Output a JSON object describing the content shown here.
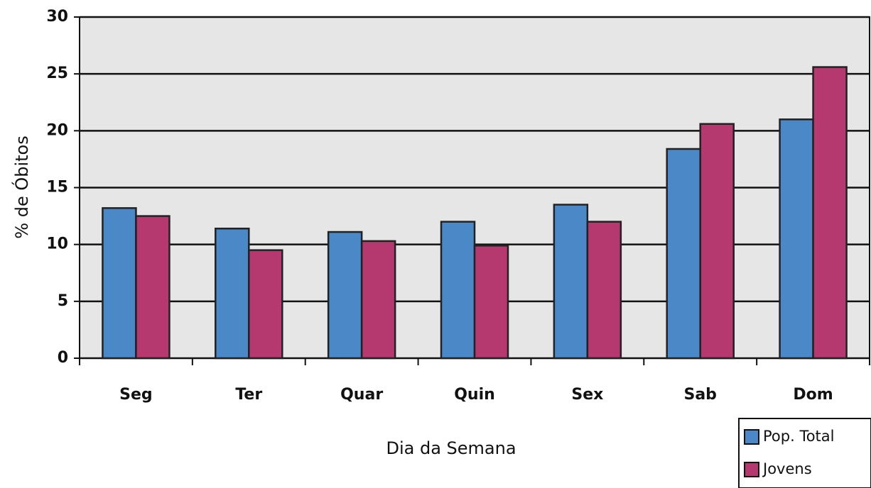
{
  "chart_data": {
    "type": "bar",
    "categories": [
      "Seg",
      "Ter",
      "Quar",
      "Quin",
      "Sex",
      "Sab",
      "Dom"
    ],
    "series": [
      {
        "name": "Pop. Total",
        "color": "#4a88c8",
        "values": [
          13.2,
          11.4,
          11.1,
          12.0,
          13.5,
          18.4,
          21.0
        ]
      },
      {
        "name": "Jovens",
        "color": "#b5386e",
        "values": [
          12.5,
          9.5,
          10.3,
          9.9,
          12.0,
          20.6,
          25.6
        ]
      }
    ],
    "xlabel": "Dia da Semana",
    "ylabel": "% de Óbitos",
    "ylim": [
      0,
      30
    ],
    "yticks": [
      0,
      5,
      10,
      15,
      20,
      25,
      30
    ],
    "grid": true,
    "legend": "bottom-right"
  }
}
